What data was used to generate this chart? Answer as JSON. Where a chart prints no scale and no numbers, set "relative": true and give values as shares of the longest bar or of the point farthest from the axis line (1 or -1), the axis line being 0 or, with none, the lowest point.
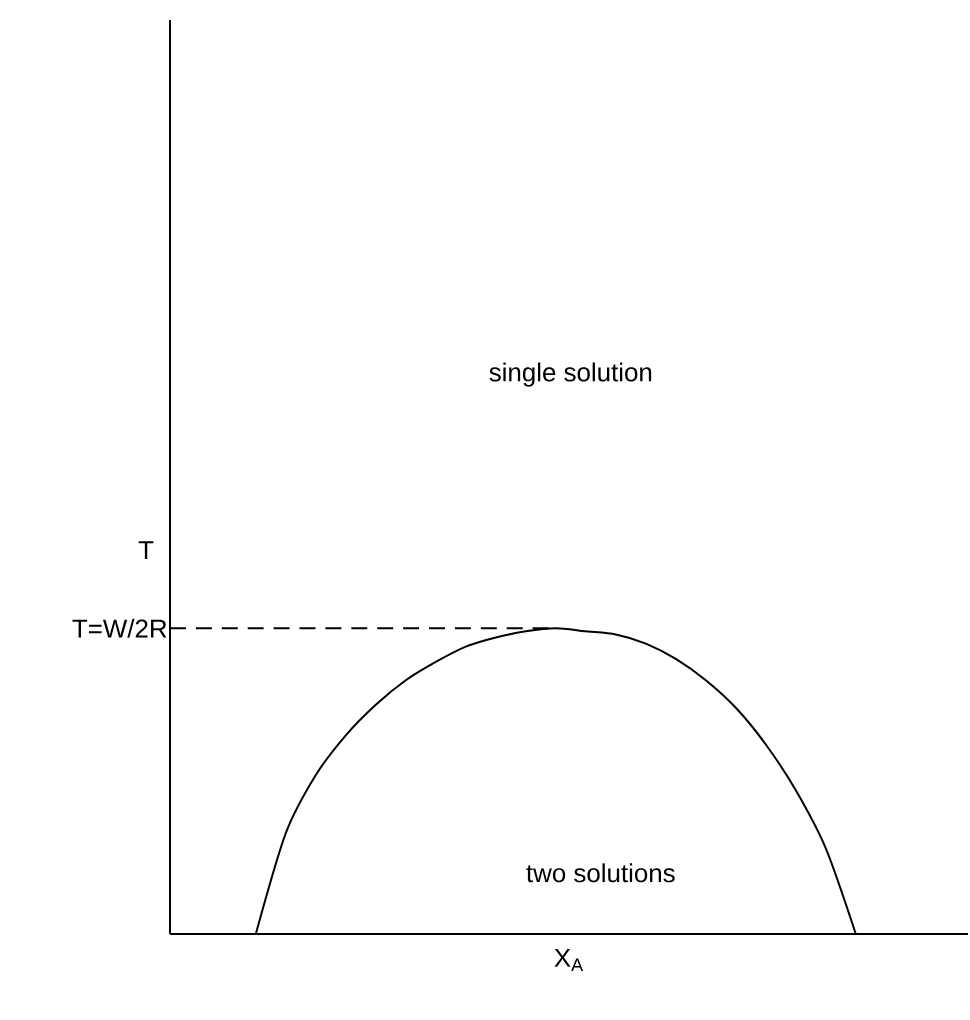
{
  "chart_data": {
    "type": "line",
    "xlabel": "X$_{A}$",
    "ylabel": "T",
    "relative": true,
    "categories": [
      null,
      null,
      null,
      null,
      null,
      null,
      null,
      null,
      null,
      null,
      null,
      null,
      null,
      null,
      null,
      null,
      null,
      null,
      null,
      null,
      null
    ],
    "series": [
      {
        "color": "#000000",
        "values": [
          0,
          0.33,
          0.52,
          0.65,
          0.75,
          0.83,
          0.89,
          0.94,
          0.97,
          0.99,
          1,
          0.99,
          0.98,
          0.95,
          0.9,
          0.83,
          0.74,
          0.62,
          0.47,
          0.28,
          0
        ]
      }
    ],
    "ref_lines": [
      {
        "axis": "y",
        "value": 1,
        "label": "T=W/2R",
        "line_style": "dashed",
        "color": "#000000"
      }
    ],
    "annotations": [
      "single solution",
      "two solutions"
    ],
    "marker": "none",
    "line_style": "solid"
  }
}
